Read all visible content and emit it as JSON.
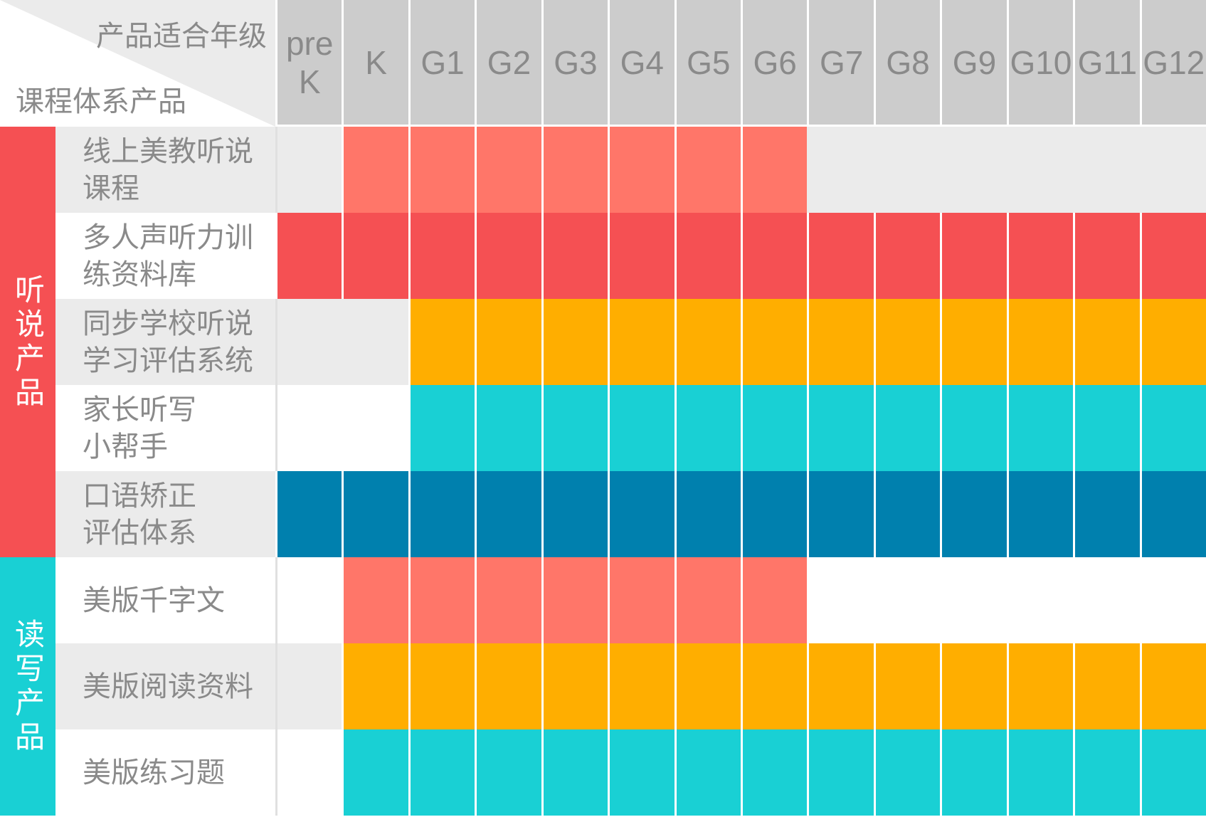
{
  "corner": {
    "top_label": "产品适合年级",
    "bottom_label": "课程体系产品"
  },
  "grades": [
    "pre\nK",
    "K",
    "G1",
    "G2",
    "G3",
    "G4",
    "G5",
    "G6",
    "G7",
    "G8",
    "G9",
    "G10",
    "G11",
    "G12"
  ],
  "colors": {
    "salmon": "#ff7669",
    "red": "#f55053",
    "orange": "#ffae00",
    "cyan": "#19d0d4",
    "blue": "#0080ae",
    "gray": "#ebebeb",
    "white": "#ffffff",
    "header": "#cccccc"
  },
  "groups": [
    {
      "label": "听说产品",
      "color": "#f55053",
      "rows": 5
    },
    {
      "label": "读写产品",
      "color": "#19d0d4",
      "rows": 3
    }
  ],
  "rows": [
    {
      "label": "线上美教听说\n课程",
      "bg": "gray",
      "cells": [
        "gray",
        "salmon",
        "salmon",
        "salmon",
        "salmon",
        "salmon",
        "salmon",
        "salmon",
        "gray",
        "gray",
        "gray",
        "gray",
        "gray",
        "gray"
      ]
    },
    {
      "label": "多人声听力训\n练资料库",
      "bg": "white",
      "cells": [
        "red",
        "red",
        "red",
        "red",
        "red",
        "red",
        "red",
        "red",
        "red",
        "red",
        "red",
        "red",
        "red",
        "red"
      ]
    },
    {
      "label": "同步学校听说\n学习评估系统",
      "bg": "gray",
      "cells": [
        "gray",
        "gray",
        "orange",
        "orange",
        "orange",
        "orange",
        "orange",
        "orange",
        "orange",
        "orange",
        "orange",
        "orange",
        "orange",
        "orange"
      ]
    },
    {
      "label": "家长听写\n小帮手",
      "bg": "white",
      "cells": [
        "white",
        "white",
        "cyan",
        "cyan",
        "cyan",
        "cyan",
        "cyan",
        "cyan",
        "cyan",
        "cyan",
        "cyan",
        "cyan",
        "cyan",
        "cyan"
      ]
    },
    {
      "label": "口语矫正\n评估体系",
      "bg": "gray",
      "cells": [
        "blue",
        "blue",
        "blue",
        "blue",
        "blue",
        "blue",
        "blue",
        "blue",
        "blue",
        "blue",
        "blue",
        "blue",
        "blue",
        "blue"
      ]
    },
    {
      "label": "美版千字文",
      "bg": "white",
      "cells": [
        "white",
        "salmon",
        "salmon",
        "salmon",
        "salmon",
        "salmon",
        "salmon",
        "salmon",
        "white",
        "white",
        "white",
        "white",
        "white",
        "white"
      ]
    },
    {
      "label": "美版阅读资料",
      "bg": "gray",
      "cells": [
        "gray",
        "orange",
        "orange",
        "orange",
        "orange",
        "orange",
        "orange",
        "orange",
        "orange",
        "orange",
        "orange",
        "orange",
        "orange",
        "orange"
      ]
    },
    {
      "label": "美版练习题",
      "bg": "white",
      "cells": [
        "white",
        "cyan",
        "cyan",
        "cyan",
        "cyan",
        "cyan",
        "cyan",
        "cyan",
        "cyan",
        "cyan",
        "cyan",
        "cyan",
        "cyan",
        "cyan"
      ]
    }
  ]
}
